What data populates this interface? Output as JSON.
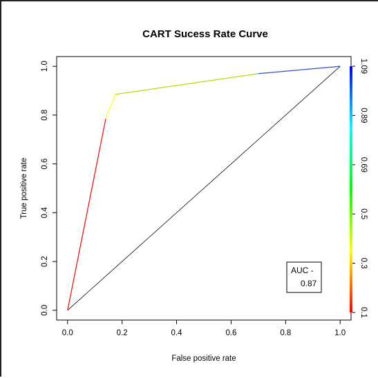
{
  "chart_data": {
    "type": "line",
    "title": "CART Sucess Rate Curve",
    "xlabel": "False positive rate",
    "ylabel": "True positive rate",
    "xlim": [
      -0.04,
      1.04
    ],
    "ylim": [
      -0.04,
      1.04
    ],
    "x_ticks": [
      "0.0",
      "0.2",
      "0.4",
      "0.6",
      "0.8",
      "1.0"
    ],
    "y_ticks": [
      "0.0",
      "0.2",
      "0.4",
      "0.6",
      "0.8",
      "1.0"
    ],
    "grid": false,
    "series": [
      {
        "x": [
          0.0,
          0.14,
          0.175,
          0.7,
          1.0
        ],
        "y": [
          0.0,
          0.785,
          0.885,
          0.97,
          1.0
        ],
        "cutoff_colors": [
          "#ff0000",
          "#ffff00",
          "#a8e000",
          "#2a50c8"
        ]
      }
    ],
    "reference_line": {
      "x": [
        0,
        1
      ],
      "y": [
        0,
        1
      ]
    },
    "colorbar": {
      "labels": [
        "1.09",
        "0.89",
        "0.69",
        "0.5",
        "0.3",
        "0.1"
      ],
      "colors": [
        "#ff0000",
        "#ffff00",
        "#00ff00",
        "#00ffff",
        "#0000ff"
      ]
    },
    "annotation": {
      "line1": "AUC -",
      "line2": "0.87"
    }
  }
}
